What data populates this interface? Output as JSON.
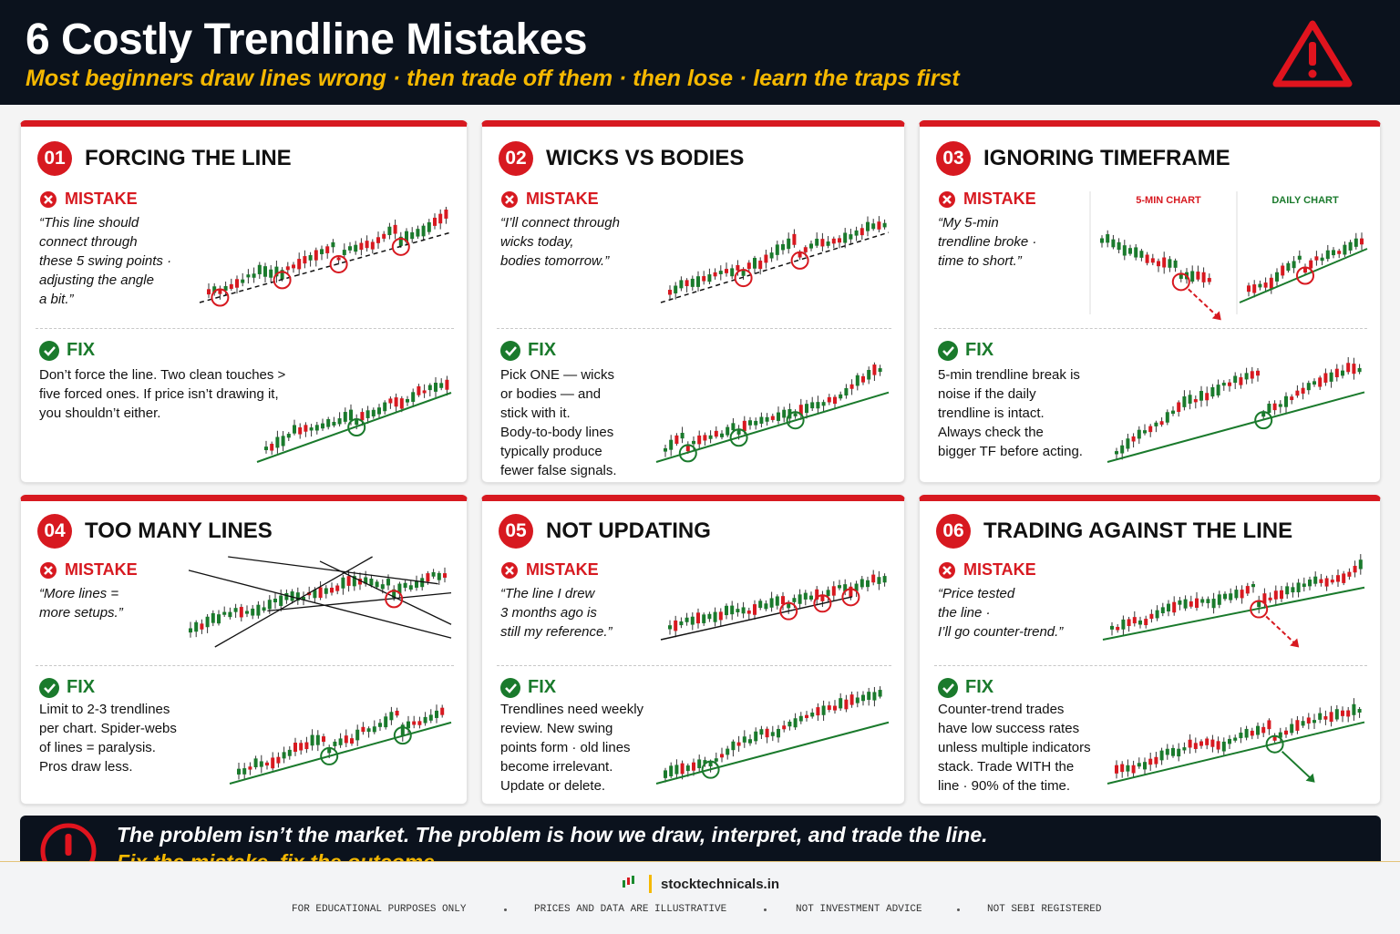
{
  "header": {
    "title": "6 Costly Trendline Mistakes",
    "subtitle": "Most beginners draw lines wrong · then trade off them · then lose · learn the traps first"
  },
  "cards": [
    {
      "number": "01",
      "title": "FORCING THE LINE",
      "mistake_label": "MISTAKE",
      "mistake_lines": [
        "“This line should",
        "connect through",
        "these 5 swing points ·",
        "adjusting the angle",
        "a bit.”"
      ],
      "fix_label": "FIX",
      "fix_lines": [
        "Don’t force the line. Two clean touches >",
        "five forced ones. If price isn’t drawing it,",
        "you shouldn’t either."
      ]
    },
    {
      "number": "02",
      "title": "WICKS VS BODIES",
      "mistake_label": "MISTAKE",
      "mistake_lines": [
        "“I’ll connect through",
        "wicks today,",
        "bodies tomorrow.”"
      ],
      "fix_label": "FIX",
      "fix_lines": [
        "Pick ONE — wicks",
        "or bodies — and",
        "stick with it.",
        "Body-to-body lines",
        "typically produce",
        "fewer false signals."
      ]
    },
    {
      "number": "03",
      "title": "IGNORING TIMEFRAME",
      "mistake_label": "MISTAKE",
      "mistake_lines": [
        "“My 5-min",
        "trendline broke ·",
        "time to short.”"
      ],
      "chart_labels": [
        "5-MIN CHART",
        "DAILY CHART"
      ],
      "fix_label": "FIX",
      "fix_lines": [
        "5-min trendline break is",
        "noise if the daily",
        "trendline is intact.",
        "Always check the",
        "bigger TF before acting."
      ]
    },
    {
      "number": "04",
      "title": "TOO MANY LINES",
      "mistake_label": "MISTAKE",
      "mistake_lines": [
        "“More lines =",
        "more setups.”"
      ],
      "fix_label": "FIX",
      "fix_lines": [
        "Limit to 2-3 trendlines",
        "per chart. Spider-webs",
        "of lines = paralysis.",
        "Pros draw less."
      ]
    },
    {
      "number": "05",
      "title": "NOT UPDATING",
      "mistake_label": "MISTAKE",
      "mistake_lines": [
        "“The line I drew",
        "3 months ago is",
        "still my reference.”"
      ],
      "fix_label": "FIX",
      "fix_lines": [
        "Trendlines need weekly",
        "review. New swing",
        "points form · old lines",
        "become irrelevant.",
        "Update or delete."
      ]
    },
    {
      "number": "06",
      "title": "TRADING AGAINST THE LINE",
      "mistake_label": "MISTAKE",
      "mistake_lines": [
        "“Price tested",
        "the line ·",
        "I’ll go counter-trend.”"
      ],
      "fix_label": "FIX",
      "fix_lines": [
        "Counter-trend trades",
        "have low success rates",
        "unless multiple indicators",
        "stack. Trade WITH the",
        "line · 90% of the time."
      ]
    }
  ],
  "banner": {
    "lines": [
      "The problem isn’t the market. The problem is how we draw, interpret, and trade the line.",
      "Fix the mistake, fix the outcome."
    ]
  },
  "footer": {
    "brand": "stocktechnicals.in",
    "disclaimers": [
      "FOR EDUCATIONAL PURPOSES ONLY",
      "PRICES AND DATA ARE ILLUSTRATIVE",
      "NOT INVESTMENT ADVICE",
      "NOT SEBI REGISTERED"
    ]
  }
}
